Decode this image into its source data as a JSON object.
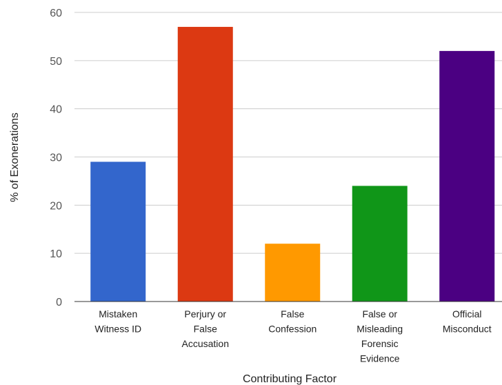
{
  "chart_data": {
    "type": "bar",
    "categories": [
      [
        "Mistaken",
        "Witness ID"
      ],
      [
        "Perjury or",
        "False",
        "Accusation"
      ],
      [
        "False",
        "Confession"
      ],
      [
        "False or",
        "Misleading",
        "Forensic",
        "Evidence"
      ],
      [
        "Official",
        "Misconduct"
      ]
    ],
    "values": [
      29,
      57,
      12,
      24,
      52
    ],
    "colors": [
      "#3366cc",
      "#dc3912",
      "#ff9900",
      "#109618",
      "#4b0082"
    ],
    "xlabel": "Contributing Factor",
    "ylabel": "% of Exonerations",
    "ylim": [
      0,
      60
    ],
    "yticks": [
      0,
      10,
      20,
      30,
      40,
      50,
      60
    ],
    "grid": true,
    "legend": "none"
  }
}
